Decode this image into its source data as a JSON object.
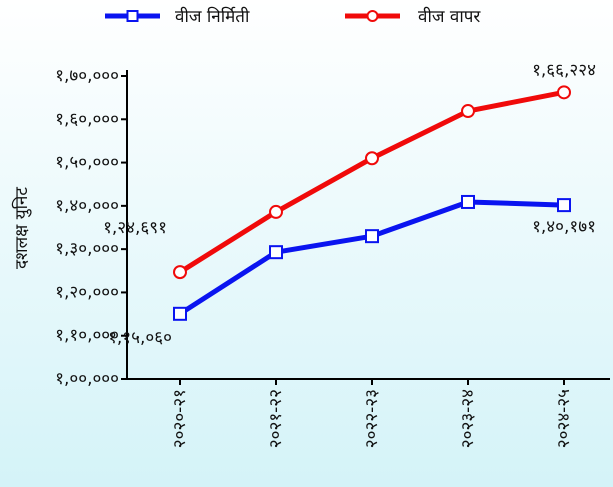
{
  "chart_data": {
    "type": "line",
    "y_label": "दशलक्ष युनिट",
    "categories": [
      "२०२०-२१",
      "२०२१-२२",
      "२०२२-२३",
      "२०२३-२४",
      "२०२४-२५"
    ],
    "series": [
      {
        "name": "वीज निर्मिती",
        "color": "#0a14f0",
        "marker": "square",
        "values": [
          115060,
          129300,
          133000,
          140900,
          140171
        ],
        "value_labels": [
          "१,१५,०६०",
          null,
          null,
          null,
          "१,४०,१७१"
        ]
      },
      {
        "name": "वीज वापर",
        "color": "#f00a0a",
        "marker": "circle",
        "values": [
          124691,
          138600,
          151000,
          161900,
          166224
        ],
        "value_labels": [
          "१,२४,६९१",
          null,
          null,
          null,
          "१,६६,२२४"
        ]
      }
    ],
    "ylim": [
      100000,
      170000
    ],
    "yticks": [
      {
        "value": 100000,
        "label": "१,००,०००"
      },
      {
        "value": 110000,
        "label": "१,१०,०००"
      },
      {
        "value": 120000,
        "label": "१,२०,०००"
      },
      {
        "value": 130000,
        "label": "१,३०,०००"
      },
      {
        "value": 140000,
        "label": "१,४०,०००"
      },
      {
        "value": 150000,
        "label": "१,५०,०००"
      },
      {
        "value": 160000,
        "label": "१,६०,०००"
      },
      {
        "value": 170000,
        "label": "१,७०,०००"
      }
    ],
    "legend": "top"
  }
}
